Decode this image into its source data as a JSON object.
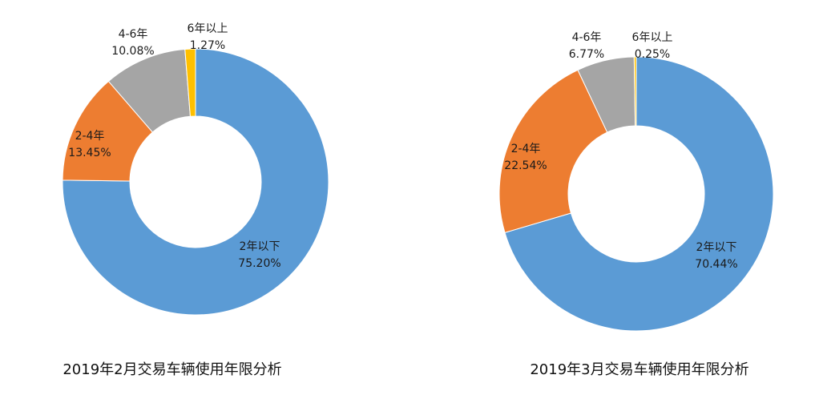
{
  "colors": {
    "blue": "#5b9bd5",
    "orange": "#ed7d31",
    "gray": "#a5a5a5",
    "yellow": "#ffc000",
    "label_text": "#1a1a1a",
    "title_text": "#111111"
  },
  "chart_data": [
    {
      "type": "pie",
      "variant": "donut",
      "title": "2019年2月交易车辆使用年限分析",
      "categories": [
        "2年以下",
        "2-4年",
        "4-6年",
        "6年以上"
      ],
      "values": [
        75.2,
        13.45,
        10.08,
        1.27
      ],
      "value_labels": [
        "75.20%",
        "13.45%",
        "10.08%",
        "1.27%"
      ],
      "unit": "%"
    },
    {
      "type": "pie",
      "variant": "donut",
      "title": "2019年3月交易车辆使用年限分析",
      "categories": [
        "2年以下",
        "2-4年",
        "4-6年",
        "6年以上"
      ],
      "values": [
        70.44,
        22.54,
        6.77,
        0.25
      ],
      "value_labels": [
        "70.44%",
        "22.54%",
        "6.77%",
        "0.25%"
      ],
      "unit": "%"
    }
  ]
}
